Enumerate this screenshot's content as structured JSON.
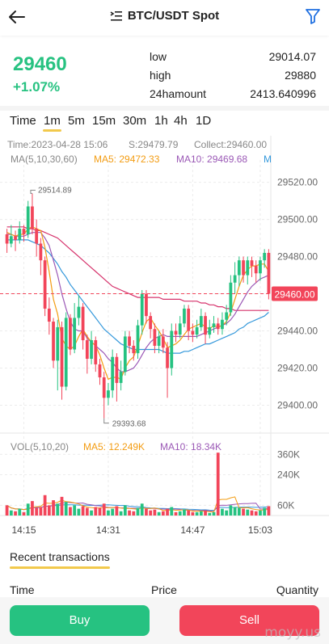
{
  "header": {
    "title": "BTC/USDT Spot",
    "back_icon": "back-arrow-icon",
    "filter_icon": "filter-icon"
  },
  "ticker": {
    "price": "29460",
    "change": "+1.07%",
    "low_label": "low",
    "low_value": "29014.07",
    "high_label": "high",
    "high_value": "29880",
    "amount_label": "24hamount",
    "amount_value": "2413.640996"
  },
  "intervals": [
    "Time",
    "1m",
    "5m",
    "15m",
    "30m",
    "1h",
    "4h",
    "1D"
  ],
  "active_interval": "1m",
  "chart_info": {
    "time": "Time:2023-04-28 15:06",
    "s": "S:29479.79",
    "collect": "Collect:29460.00",
    "ma_title": "MA(5,10,30,60)",
    "ma5": "MA5: 29472.33",
    "ma10": "MA10: 29469.68",
    "ma_more": "M",
    "high_marker": "29514.89",
    "low_marker": "29393.68",
    "current_tag": "29460.00",
    "vol_title": "VOL(5,10,20)",
    "vol_ma5": "MA5: 12.249K",
    "vol_ma10": "MA10: 18.34K"
  },
  "colors": {
    "up": "#26c281",
    "down": "#f2455a",
    "ma5": "#f39c12",
    "ma10": "#9b59b6",
    "ma30": "#3498db",
    "ma60": "#d6336c",
    "accent": "#f2c94c"
  },
  "chart_data": {
    "type": "candlestick",
    "y_ticks": [
      29520,
      29500,
      29480,
      29460,
      29440,
      29420,
      29400
    ],
    "y_tick_labels": [
      "29520.00",
      "29500.00",
      "29480.00",
      "29460.00",
      "29440.00",
      "29420.00",
      "29400.00"
    ],
    "ylim": [
      29385,
      29532
    ],
    "x_tick_labels": [
      "14:15",
      "14:31",
      "14:47",
      "15:03"
    ],
    "vol_tick_labels": [
      "360K",
      "240K",
      "60K"
    ],
    "vol_ticks": [
      360,
      240,
      60
    ],
    "vol_max": 390,
    "candles": [
      [
        29492,
        29487,
        29495,
        29482,
        60
      ],
      [
        29487,
        29491,
        29497,
        29485,
        30
      ],
      [
        29491,
        29489,
        29494,
        29483,
        25
      ],
      [
        29489,
        29495,
        29499,
        29487,
        40
      ],
      [
        29495,
        29492,
        29497,
        29488,
        20
      ],
      [
        29492,
        29507,
        29510,
        29490,
        70
      ],
      [
        29507,
        29495,
        29514,
        29492,
        85
      ],
      [
        29495,
        29487,
        29500,
        29480,
        45
      ],
      [
        29487,
        29478,
        29490,
        29470,
        50
      ],
      [
        29478,
        29452,
        29480,
        29448,
        120
      ],
      [
        29452,
        29445,
        29458,
        29438,
        60
      ],
      [
        29445,
        29424,
        29447,
        29420,
        90
      ],
      [
        29424,
        29442,
        29446,
        29408,
        70
      ],
      [
        29442,
        29410,
        29445,
        29403,
        110
      ],
      [
        29410,
        29447,
        29450,
        29408,
        80
      ],
      [
        29447,
        29430,
        29449,
        29427,
        50
      ],
      [
        29430,
        29447,
        29455,
        29428,
        60
      ],
      [
        29447,
        29453,
        29459,
        29443,
        40
      ],
      [
        29453,
        29435,
        29455,
        29430,
        55
      ],
      [
        29435,
        29425,
        29438,
        29417,
        45
      ],
      [
        29425,
        29435,
        29440,
        29422,
        30
      ],
      [
        29435,
        29422,
        29437,
        29418,
        50
      ],
      [
        29422,
        29415,
        29425,
        29411,
        45
      ],
      [
        29415,
        29404,
        29418,
        29393,
        70
      ],
      [
        29404,
        29408,
        29412,
        29400,
        30
      ],
      [
        29408,
        29426,
        29430,
        29404,
        40
      ],
      [
        29426,
        29412,
        29428,
        29402,
        55
      ],
      [
        29412,
        29418,
        29424,
        29408,
        25
      ],
      [
        29418,
        29437,
        29440,
        29416,
        60
      ],
      [
        29437,
        29432,
        29440,
        29428,
        30
      ],
      [
        29432,
        29428,
        29435,
        29424,
        25
      ],
      [
        29428,
        29443,
        29446,
        29425,
        45
      ],
      [
        29443,
        29460,
        29462,
        29438,
        70
      ],
      [
        29460,
        29448,
        29462,
        29444,
        40
      ],
      [
        29448,
        29441,
        29450,
        29436,
        30
      ],
      [
        29441,
        29432,
        29444,
        29428,
        35
      ],
      [
        29432,
        29437,
        29440,
        29428,
        20
      ],
      [
        29437,
        29431,
        29441,
        29428,
        25
      ],
      [
        29431,
        29420,
        29434,
        29404,
        40
      ],
      [
        29420,
        29440,
        29444,
        29416,
        50
      ],
      [
        29440,
        29438,
        29444,
        29434,
        20
      ],
      [
        29438,
        29444,
        29448,
        29436,
        25
      ],
      [
        29444,
        29452,
        29454,
        29442,
        35
      ],
      [
        29452,
        29440,
        29454,
        29435,
        30
      ],
      [
        29440,
        29438,
        29444,
        29434,
        20
      ],
      [
        29438,
        29442,
        29446,
        29436,
        20
      ],
      [
        29442,
        29448,
        29452,
        29440,
        25
      ],
      [
        29448,
        29438,
        29450,
        29433,
        30
      ],
      [
        29438,
        29442,
        29446,
        29436,
        15
      ],
      [
        29442,
        29444,
        29448,
        29439,
        20
      ],
      [
        29444,
        29441,
        29447,
        29438,
        370
      ],
      [
        29441,
        29446,
        29450,
        29438,
        40
      ],
      [
        29446,
        29450,
        29454,
        29443,
        30
      ],
      [
        29450,
        29466,
        29470,
        29448,
        60
      ],
      [
        29466,
        29470,
        29477,
        29460,
        50
      ],
      [
        29470,
        29478,
        29480,
        29464,
        45
      ],
      [
        29478,
        29470,
        29480,
        29466,
        40
      ],
      [
        29470,
        29478,
        29480,
        29465,
        35
      ],
      [
        29478,
        29475,
        29480,
        29469,
        30
      ],
      [
        29475,
        29471,
        29478,
        29466,
        25
      ],
      [
        29471,
        29478,
        29480,
        29467,
        30
      ],
      [
        29478,
        29482,
        29484,
        29474,
        45
      ],
      [
        29482,
        29460,
        29484,
        29457,
        55
      ]
    ],
    "ma5": [
      29493,
      29492,
      29491,
      29492,
      29492,
      29495,
      29496,
      29495,
      29494,
      29485,
      29472,
      29457,
      29449,
      29436,
      29432,
      29430,
      29432,
      29437,
      29441,
      29437,
      29434,
      29432,
      29427,
      29420,
      29414,
      29415,
      29415,
      29414,
      29420,
      29424,
      29426,
      29432,
      29439,
      29445,
      29447,
      29443,
      29440,
      29436,
      29431,
      29432,
      29433,
      29435,
      29438,
      29441,
      29442,
      29443,
      29444,
      29442,
      29441,
      29443,
      29442,
      29443,
      29445,
      29450,
      29457,
      29464,
      29470,
      29473,
      29475,
      29475,
      29476,
      29476,
      29472
    ],
    "ma10": [
      29492,
      29492,
      29491,
      29491,
      29491,
      29492,
      29493,
      29493,
      29493,
      29490,
      29486,
      29478,
      29470,
      29460,
      29452,
      29445,
      29441,
      29440,
      29440,
      29436,
      29434,
      29432,
      29430,
      29428,
      29425,
      29423,
      29420,
      29418,
      29418,
      29419,
      29420,
      29423,
      29427,
      29431,
      29434,
      29436,
      29437,
      29438,
      29437,
      29437,
      29437,
      29437,
      29437,
      29437,
      29437,
      29437,
      29438,
      29439,
      29440,
      29441,
      29442,
      29443,
      29444,
      29446,
      29449,
      29453,
      29457,
      29461,
      29464,
      29466,
      29468,
      29469,
      29470
    ],
    "ma30": [
      29489,
      29489,
      29489,
      29489,
      29489,
      29489,
      29488,
      29487,
      29486,
      29484,
      29482,
      29479,
      29476,
      29472,
      29469,
      29465,
      29462,
      29459,
      29456,
      29453,
      29450,
      29447,
      29444,
      29441,
      29439,
      29437,
      29435,
      29433,
      29432,
      29431,
      29430,
      29430,
      29430,
      29430,
      29430,
      29430,
      29430,
      29429,
      29428,
      29428,
      29428,
      29428,
      29429,
      29429,
      29430,
      29431,
      29432,
      29433,
      29433,
      29434,
      29435,
      29436,
      29437,
      29438,
      29439,
      29441,
      29442,
      29444,
      29445,
      29446,
      29447,
      29448,
      29450
    ],
    "ma60": [
      29496,
      29496,
      29496,
      29496,
      29496,
      29495,
      29495,
      29494,
      29494,
      29493,
      29492,
      29491,
      29490,
      29488,
      29486,
      29484,
      29482,
      29480,
      29478,
      29476,
      29474,
      29472,
      29470,
      29468,
      29466,
      29464,
      29463,
      29462,
      29461,
      29460,
      29459,
      29458,
      29458,
      29458,
      29458,
      29458,
      29458,
      29457,
      29457,
      29457,
      29457,
      29457,
      29456,
      29456,
      29456,
      29456,
      29455,
      29455,
      29454,
      29454,
      29453,
      29453,
      29452,
      29452,
      29451,
      29451,
      29451,
      29451,
      29451,
      29451,
      29451,
      29451,
      29451
    ]
  },
  "recent": {
    "title": "Recent transactions",
    "col_time": "Time",
    "col_price": "Price",
    "col_qty": "Quantity"
  },
  "actions": {
    "buy": "Buy",
    "sell": "Sell"
  },
  "watermark": "moyy.us"
}
